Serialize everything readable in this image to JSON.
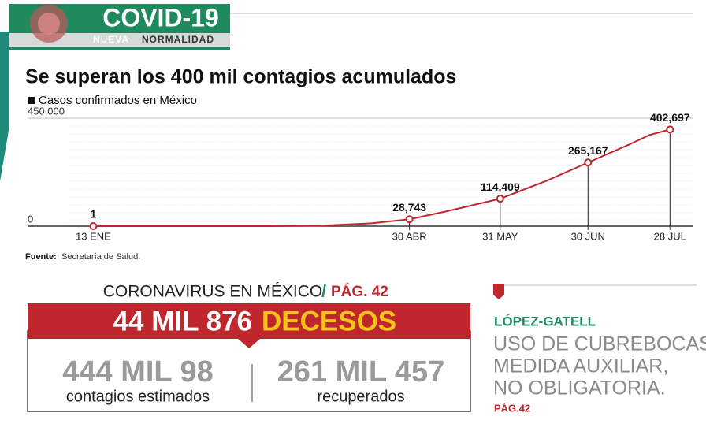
{
  "header": {
    "title": "COVID-19",
    "subtitle_1": "NUEVA",
    "subtitle_2": "NORMALIDAD"
  },
  "chart_data": {
    "type": "line",
    "title": "Se superan los 400 mil contagios acumulados",
    "x": [
      0,
      60,
      78,
      95,
      108,
      120,
      139,
      155,
      169,
      183,
      190,
      197
    ],
    "series": [
      {
        "name": "Casos confirmados en México",
        "color": "#c0272d",
        "values": [
          1,
          100,
          2000,
          12000,
          28743,
          60000,
          114409,
          190000,
          265167,
          340000,
          380000,
          402697
        ],
        "value_labels": [
          "1",
          null,
          null,
          null,
          "28,743",
          null,
          "114,409",
          null,
          "265,167",
          null,
          null,
          "402,697"
        ]
      }
    ],
    "xlim": [
      -9,
      205
    ],
    "xticks": [
      {
        "value": 0,
        "label": "13 ENE"
      },
      {
        "value": 108,
        "label": "30 ABR"
      },
      {
        "value": 139,
        "label": "31 MAY"
      },
      {
        "value": 169,
        "label": "30 JUN"
      },
      {
        "value": 197,
        "label": "28 JUL"
      }
    ],
    "ylim": [
      0,
      450000
    ],
    "yticks": [
      0,
      {
        "value": 450000,
        "label": "450,000"
      }
    ],
    "grid": true,
    "note_label": "Fuente:",
    "note": "Secretaría de Salud."
  },
  "section": {
    "header": "CORONAVIRUS EN MÉXICO",
    "separator": "/",
    "page_ref": "PÁG. 42",
    "deaths_number": "44 MIL 876",
    "deaths_label": "DECESOS",
    "stats": [
      {
        "value": "444 MIL 98",
        "label": "contagios estimados"
      },
      {
        "value": "261 MIL 457",
        "label": "recuperados"
      }
    ]
  },
  "sidebar": {
    "kicker": "LÓPEZ-GATELL",
    "headline": [
      "USO DE CUBREBOCAS,",
      "MEDIDA AUXILIAR,",
      "NO OBLIGATORIA."
    ],
    "page": "PÁG.42"
  }
}
